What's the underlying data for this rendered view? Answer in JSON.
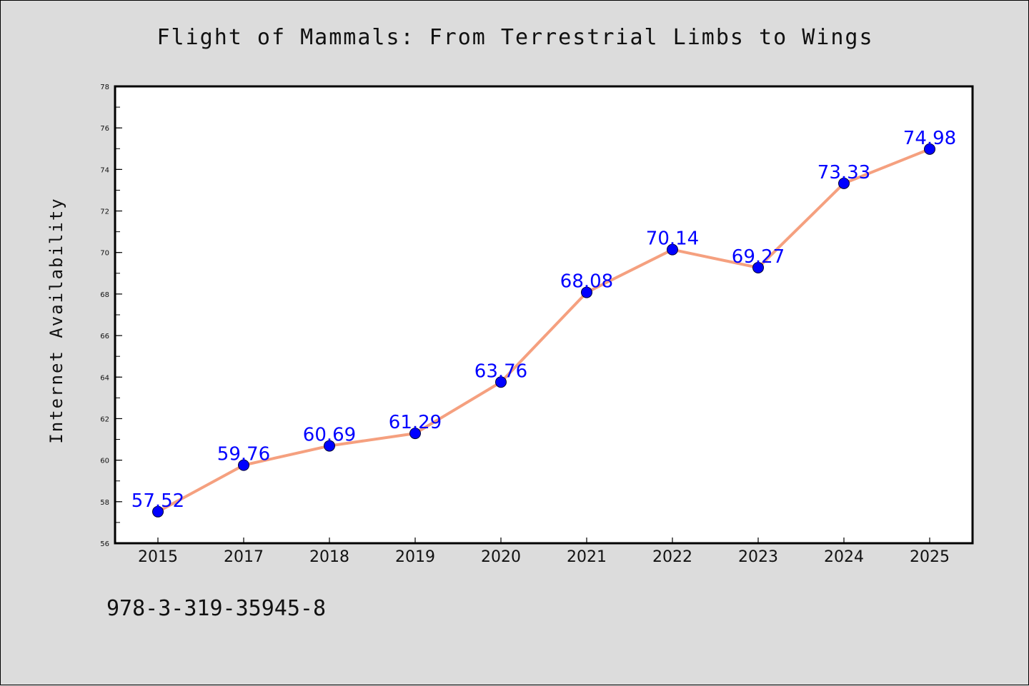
{
  "figure": {
    "title": "Flight of Mammals: From Terrestrial Limbs to Wings",
    "footnote": "978-3-319-35945-8",
    "background_color": "#dcdcdc",
    "plot_background_color": "#ffffff"
  },
  "chart_data": {
    "type": "line",
    "title": "Flight of Mammals: From Terrestrial Limbs to Wings",
    "xlabel": "",
    "ylabel": "Internet Availability",
    "categories": [
      "2015",
      "2017",
      "2018",
      "2019",
      "2020",
      "2021",
      "2022",
      "2023",
      "2024",
      "2025"
    ],
    "series": [
      {
        "values": [
          57.52,
          59.76,
          60.69,
          61.29,
          63.76,
          68.08,
          70.14,
          69.27,
          73.33,
          74.98
        ],
        "labels": [
          "57.52",
          "59.76",
          "60.69",
          "61.29",
          "63.76",
          "68.08",
          "70.14",
          "69.27",
          "73.33",
          "74.98"
        ],
        "line_color": "#f5a07f",
        "marker_color": "#0000ff",
        "label_color": "#0000ff"
      }
    ],
    "ylim": [
      56,
      78
    ],
    "y_ticks": [
      "56",
      "58",
      "60",
      "62",
      "64",
      "66",
      "68",
      "70",
      "72",
      "74",
      "76",
      "78"
    ],
    "y_minor_step": 1,
    "grid": false,
    "legend": "none"
  }
}
